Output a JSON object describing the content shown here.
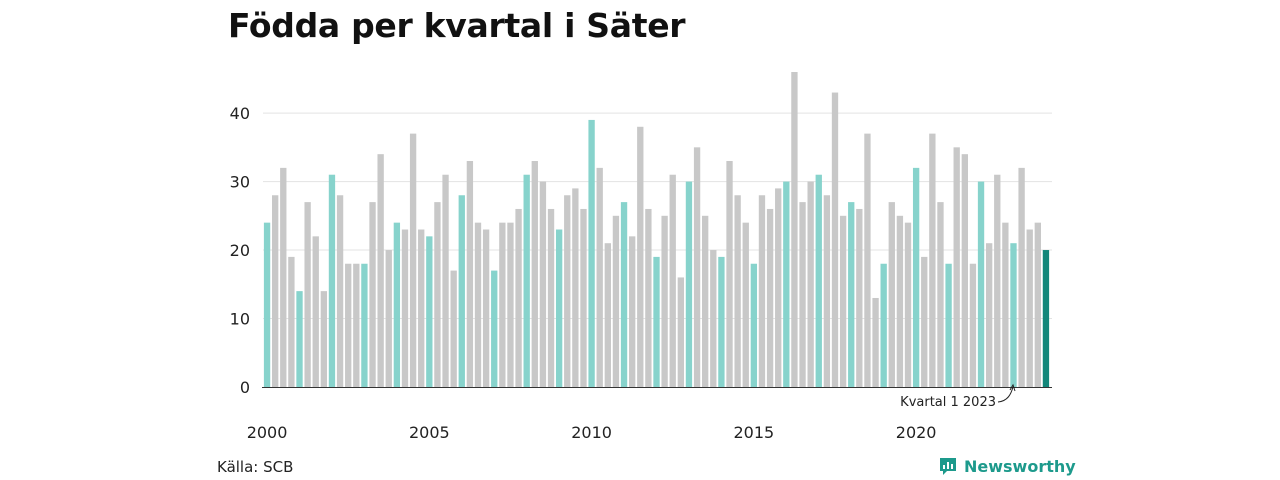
{
  "title": "Födda per kvartal i Säter",
  "source": "Källa: SCB",
  "brand": "Newsworthy",
  "colors": {
    "q1": "#87d3cc",
    "other": "#c8c8c8",
    "highlight": "#13877a",
    "grid": "#e3e3e3",
    "brand": "#1d9a8c"
  },
  "chart_data": {
    "type": "bar",
    "start_year": 2000,
    "quarters_per_year": 4,
    "values": [
      24,
      28,
      32,
      19,
      14,
      27,
      22,
      14,
      31,
      28,
      18,
      18,
      18,
      27,
      34,
      20,
      24,
      23,
      37,
      23,
      22,
      27,
      31,
      17,
      28,
      33,
      24,
      23,
      17,
      24,
      24,
      26,
      31,
      33,
      30,
      26,
      23,
      28,
      29,
      26,
      39,
      32,
      21,
      25,
      27,
      22,
      38,
      26,
      19,
      25,
      31,
      16,
      30,
      35,
      25,
      20,
      19,
      33,
      28,
      24,
      18,
      28,
      26,
      29,
      30,
      46,
      27,
      30,
      31,
      28,
      43,
      25,
      27,
      26,
      37,
      13,
      18,
      27,
      25,
      24,
      32,
      19,
      37,
      27,
      18,
      35,
      34,
      18,
      30,
      21,
      31,
      24,
      21,
      32,
      23,
      24,
      20
    ],
    "ylim": [
      0,
      46
    ],
    "yticks": [
      0,
      10,
      20,
      30,
      40
    ],
    "xticks": [
      "2000",
      "2005",
      "2010",
      "2015",
      "2020"
    ],
    "annotation": "Kvartal 1 2023",
    "grid": true
  }
}
